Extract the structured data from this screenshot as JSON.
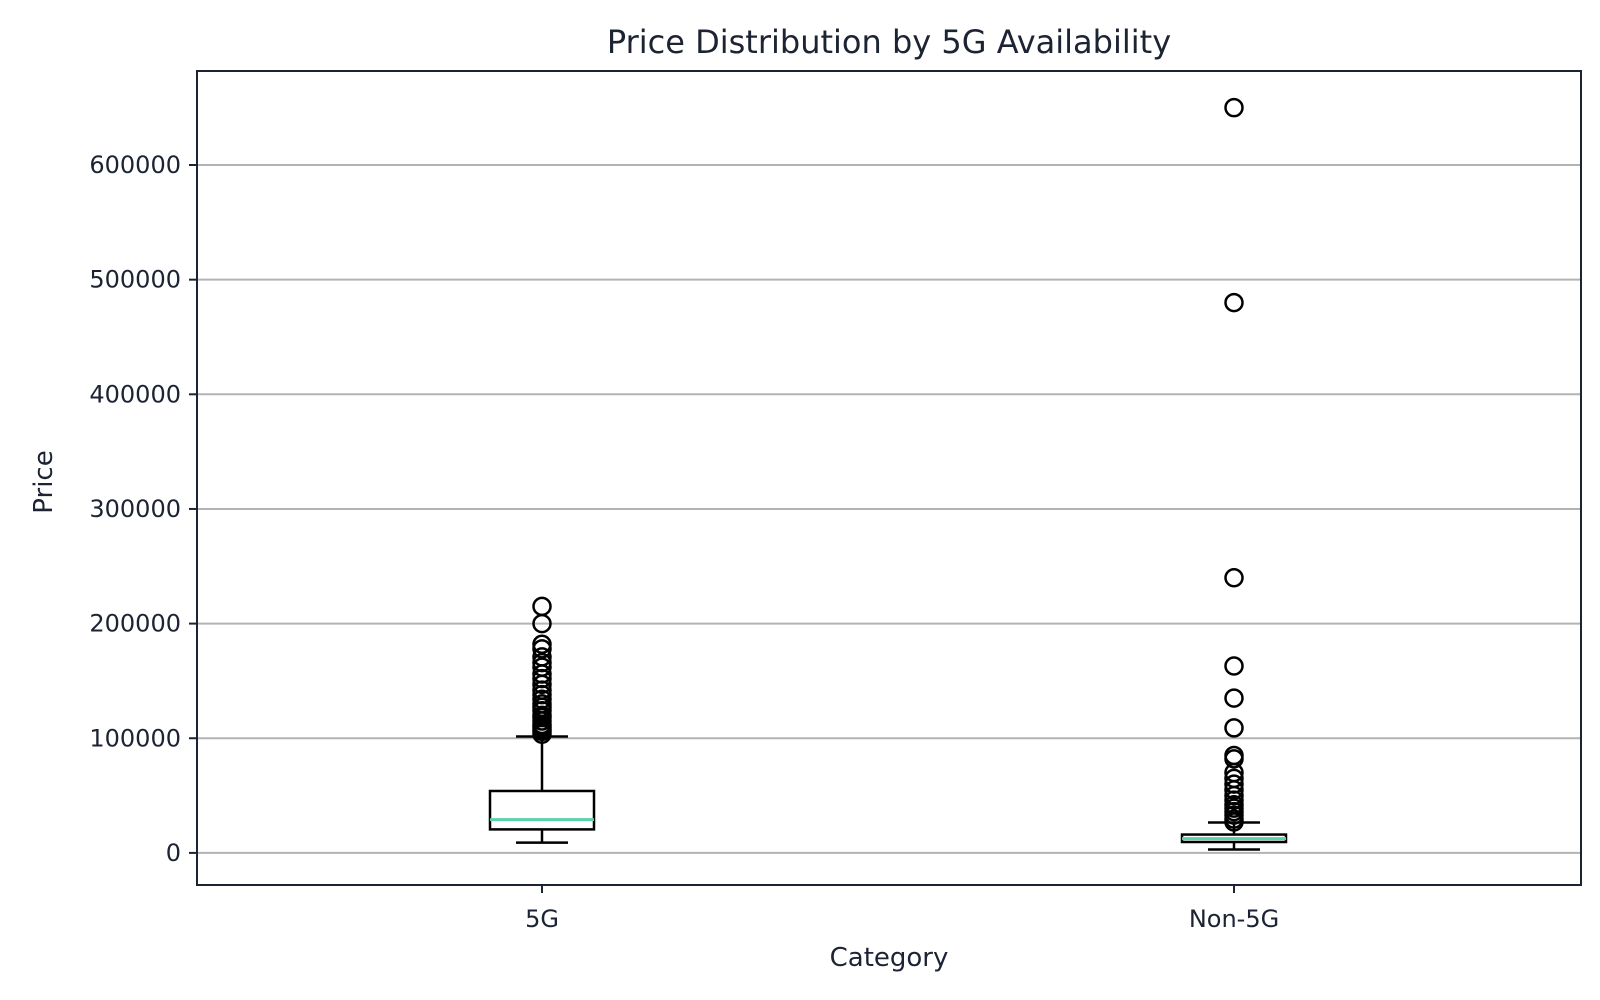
{
  "chart_data": {
    "type": "box",
    "title": "Price Distribution by 5G Availability",
    "xlabel": "Category",
    "ylabel": "Price",
    "ylim": [
      -28000,
      682000
    ],
    "yticks": [
      0,
      100000,
      200000,
      300000,
      400000,
      500000,
      600000
    ],
    "ytick_labels": [
      "0",
      "100000",
      "200000",
      "300000",
      "400000",
      "500000",
      "600000"
    ],
    "grid": "horizontal",
    "colors": {
      "median": "#5ad3a8",
      "box": "#000000",
      "grid": "#b3b3b3",
      "text": "#1c2333"
    },
    "categories": [
      "5G",
      "Non-5G"
    ],
    "boxes": [
      {
        "category": "5G",
        "whisker_low": 9000,
        "q1": 20500,
        "median": 29000,
        "q3": 54000,
        "whisker_high": 101500,
        "outliers": [
          103500,
          106000,
          108000,
          110000,
          112000,
          115000,
          118000,
          120000,
          124000,
          127000,
          130000,
          134000,
          138000,
          142000,
          147000,
          152000,
          156000,
          162000,
          166000,
          171000,
          178000,
          182000,
          200000,
          215000
        ]
      },
      {
        "category": "Non-5G",
        "whisker_low": 3000,
        "q1": 9500,
        "median": 12500,
        "q3": 16000,
        "whisker_high": 26500,
        "outliers": [
          27000,
          29500,
          33000,
          36000,
          39000,
          42000,
          46000,
          50000,
          55000,
          60000,
          65000,
          70000,
          82000,
          85000,
          109000,
          135000,
          163000,
          240000,
          480000,
          650000
        ]
      }
    ]
  }
}
